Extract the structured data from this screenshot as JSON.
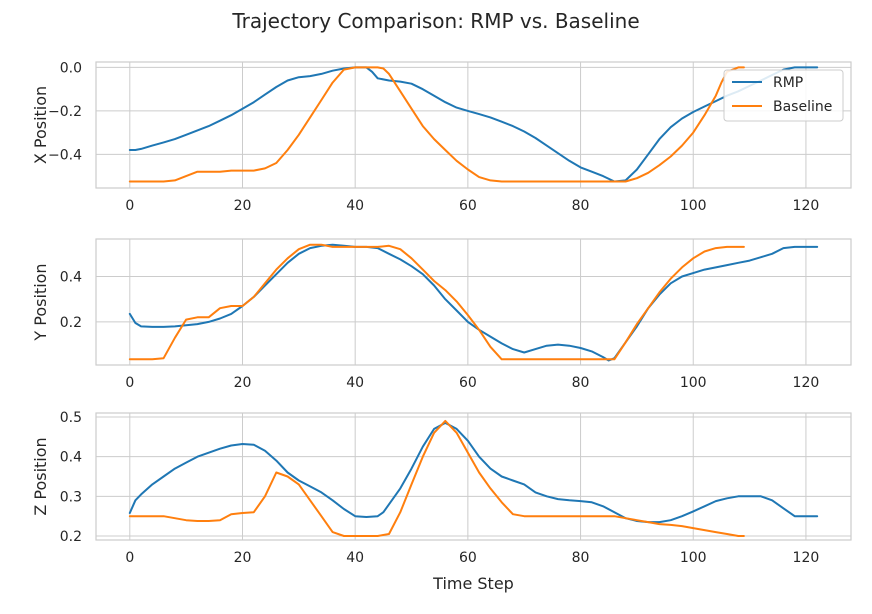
{
  "figure": {
    "title": "Trajectory Comparison: RMP vs. Baseline"
  },
  "legend": {
    "items": [
      {
        "label": "RMP",
        "color": "#1f77b4"
      },
      {
        "label": "Baseline",
        "color": "#ff7f0e"
      }
    ],
    "placement": "upper-right of top subplot"
  },
  "chart_data": [
    {
      "type": "line",
      "title": "",
      "xlabel": "",
      "ylabel": "X Position",
      "xlim": [
        -6,
        128
      ],
      "ylim": [
        -0.555,
        0.025
      ],
      "xticks": [
        0,
        20,
        40,
        60,
        80,
        100,
        120
      ],
      "yticks": [
        -0.4,
        -0.2,
        0.0
      ],
      "ytick_labels": [
        "−0.4",
        "−0.2",
        "0.0"
      ],
      "grid": true,
      "series": [
        {
          "name": "RMP",
          "color": "#1f77b4",
          "x": [
            0,
            1,
            2,
            4,
            6,
            8,
            10,
            12,
            14,
            16,
            18,
            20,
            22,
            24,
            26,
            28,
            30,
            32,
            34,
            36,
            38,
            40,
            42,
            43,
            44,
            46,
            48,
            50,
            52,
            54,
            56,
            58,
            60,
            62,
            64,
            66,
            68,
            70,
            72,
            74,
            76,
            78,
            80,
            82,
            84,
            86,
            88,
            90,
            92,
            94,
            96,
            98,
            100,
            102,
            104,
            106,
            108,
            110,
            112,
            114,
            116,
            118,
            120,
            122
          ],
          "y": [
            -0.38,
            -0.38,
            -0.375,
            -0.36,
            -0.345,
            -0.33,
            -0.31,
            -0.29,
            -0.27,
            -0.245,
            -0.22,
            -0.19,
            -0.16,
            -0.125,
            -0.09,
            -0.06,
            -0.045,
            -0.04,
            -0.03,
            -0.015,
            -0.005,
            0.0,
            0.0,
            -0.02,
            -0.05,
            -0.06,
            -0.065,
            -0.075,
            -0.1,
            -0.13,
            -0.16,
            -0.185,
            -0.2,
            -0.215,
            -0.23,
            -0.25,
            -0.27,
            -0.295,
            -0.325,
            -0.36,
            -0.395,
            -0.43,
            -0.46,
            -0.48,
            -0.5,
            -0.525,
            -0.52,
            -0.47,
            -0.4,
            -0.33,
            -0.275,
            -0.235,
            -0.205,
            -0.18,
            -0.155,
            -0.13,
            -0.11,
            -0.085,
            -0.06,
            -0.035,
            -0.01,
            0.0,
            0.0,
            0.0
          ]
        },
        {
          "name": "Baseline",
          "color": "#ff7f0e",
          "x": [
            0,
            2,
            4,
            6,
            8,
            10,
            12,
            14,
            16,
            18,
            20,
            22,
            24,
            26,
            28,
            30,
            32,
            34,
            36,
            38,
            40,
            42,
            44,
            45,
            46,
            48,
            50,
            52,
            54,
            56,
            58,
            60,
            62,
            64,
            66,
            68,
            70,
            72,
            74,
            76,
            78,
            80,
            82,
            84,
            86,
            88,
            90,
            92,
            94,
            96,
            98,
            100,
            102,
            104,
            105,
            106,
            108,
            109
          ],
          "y": [
            -0.525,
            -0.525,
            -0.525,
            -0.525,
            -0.52,
            -0.5,
            -0.48,
            -0.48,
            -0.48,
            -0.475,
            -0.475,
            -0.475,
            -0.465,
            -0.44,
            -0.38,
            -0.31,
            -0.23,
            -0.15,
            -0.07,
            -0.01,
            0.0,
            0.0,
            0.0,
            -0.005,
            -0.03,
            -0.11,
            -0.19,
            -0.27,
            -0.33,
            -0.38,
            -0.43,
            -0.47,
            -0.505,
            -0.52,
            -0.525,
            -0.525,
            -0.525,
            -0.525,
            -0.525,
            -0.525,
            -0.525,
            -0.525,
            -0.525,
            -0.525,
            -0.525,
            -0.525,
            -0.51,
            -0.485,
            -0.45,
            -0.41,
            -0.36,
            -0.3,
            -0.22,
            -0.13,
            -0.07,
            -0.02,
            0.0,
            0.0
          ]
        }
      ]
    },
    {
      "type": "line",
      "title": "",
      "xlabel": "",
      "ylabel": "Y Position",
      "xlim": [
        -6,
        128
      ],
      "ylim": [
        0.01,
        0.565
      ],
      "xticks": [
        0,
        20,
        40,
        60,
        80,
        100,
        120
      ],
      "yticks": [
        0.2,
        0.4
      ],
      "ytick_labels": [
        "0.2",
        "0.4"
      ],
      "grid": true,
      "series": [
        {
          "name": "RMP",
          "color": "#1f77b4",
          "x": [
            0,
            1,
            2,
            4,
            6,
            8,
            10,
            12,
            14,
            16,
            18,
            20,
            22,
            24,
            26,
            28,
            30,
            32,
            34,
            36,
            38,
            40,
            42,
            44,
            46,
            48,
            50,
            52,
            54,
            56,
            58,
            60,
            62,
            64,
            66,
            68,
            70,
            72,
            74,
            76,
            78,
            80,
            82,
            84,
            85,
            86,
            88,
            90,
            92,
            94,
            96,
            98,
            100,
            102,
            104,
            106,
            108,
            110,
            112,
            114,
            116,
            118,
            120,
            122
          ],
          "y": [
            0.235,
            0.195,
            0.18,
            0.178,
            0.178,
            0.18,
            0.185,
            0.19,
            0.2,
            0.215,
            0.235,
            0.27,
            0.31,
            0.36,
            0.41,
            0.46,
            0.5,
            0.525,
            0.535,
            0.54,
            0.535,
            0.53,
            0.53,
            0.525,
            0.5,
            0.475,
            0.445,
            0.41,
            0.36,
            0.3,
            0.25,
            0.2,
            0.165,
            0.135,
            0.105,
            0.08,
            0.065,
            0.08,
            0.095,
            0.1,
            0.095,
            0.085,
            0.07,
            0.045,
            0.03,
            0.04,
            0.11,
            0.18,
            0.26,
            0.32,
            0.37,
            0.4,
            0.415,
            0.43,
            0.44,
            0.45,
            0.46,
            0.47,
            0.485,
            0.5,
            0.525,
            0.53,
            0.53,
            0.53
          ]
        },
        {
          "name": "Baseline",
          "color": "#ff7f0e",
          "x": [
            0,
            2,
            4,
            6,
            8,
            10,
            12,
            14,
            16,
            18,
            20,
            22,
            24,
            26,
            28,
            30,
            32,
            34,
            36,
            38,
            40,
            42,
            44,
            46,
            48,
            50,
            52,
            54,
            56,
            58,
            60,
            62,
            64,
            66,
            68,
            70,
            72,
            74,
            76,
            78,
            80,
            82,
            84,
            86,
            88,
            90,
            92,
            94,
            96,
            98,
            100,
            102,
            104,
            106,
            108,
            109
          ],
          "y": [
            0.035,
            0.035,
            0.035,
            0.04,
            0.13,
            0.21,
            0.22,
            0.22,
            0.26,
            0.27,
            0.27,
            0.31,
            0.37,
            0.43,
            0.48,
            0.52,
            0.54,
            0.54,
            0.53,
            0.53,
            0.53,
            0.53,
            0.53,
            0.535,
            0.52,
            0.48,
            0.43,
            0.38,
            0.34,
            0.29,
            0.23,
            0.165,
            0.09,
            0.035,
            0.035,
            0.035,
            0.035,
            0.035,
            0.035,
            0.035,
            0.035,
            0.035,
            0.035,
            0.035,
            0.11,
            0.19,
            0.26,
            0.33,
            0.39,
            0.44,
            0.48,
            0.51,
            0.525,
            0.53,
            0.53,
            0.53
          ]
        }
      ]
    },
    {
      "type": "line",
      "title": "",
      "xlabel": "Time Step",
      "ylabel": "Z Position",
      "xlim": [
        -6,
        128
      ],
      "ylim": [
        0.19,
        0.51
      ],
      "xticks": [
        0,
        20,
        40,
        60,
        80,
        100,
        120
      ],
      "yticks": [
        0.2,
        0.3,
        0.4,
        0.5
      ],
      "ytick_labels": [
        "0.2",
        "0.3",
        "0.4",
        "0.5"
      ],
      "grid": true,
      "series": [
        {
          "name": "RMP",
          "color": "#1f77b4",
          "x": [
            0,
            1,
            2,
            4,
            6,
            8,
            10,
            12,
            14,
            16,
            18,
            20,
            22,
            24,
            26,
            28,
            30,
            32,
            34,
            36,
            38,
            40,
            42,
            44,
            45,
            46,
            48,
            50,
            52,
            54,
            56,
            58,
            60,
            62,
            64,
            66,
            68,
            70,
            72,
            74,
            76,
            78,
            80,
            82,
            84,
            86,
            88,
            90,
            92,
            94,
            96,
            98,
            100,
            102,
            104,
            106,
            108,
            110,
            112,
            114,
            116,
            118,
            120,
            122
          ],
          "y": [
            0.258,
            0.29,
            0.305,
            0.33,
            0.35,
            0.37,
            0.385,
            0.4,
            0.41,
            0.42,
            0.428,
            0.432,
            0.43,
            0.415,
            0.39,
            0.36,
            0.34,
            0.325,
            0.31,
            0.29,
            0.268,
            0.25,
            0.248,
            0.25,
            0.26,
            0.28,
            0.32,
            0.37,
            0.425,
            0.47,
            0.485,
            0.47,
            0.44,
            0.4,
            0.37,
            0.35,
            0.34,
            0.33,
            0.31,
            0.3,
            0.293,
            0.29,
            0.288,
            0.285,
            0.275,
            0.26,
            0.245,
            0.238,
            0.235,
            0.235,
            0.24,
            0.25,
            0.262,
            0.275,
            0.288,
            0.295,
            0.3,
            0.3,
            0.3,
            0.29,
            0.27,
            0.25,
            0.25,
            0.25
          ]
        },
        {
          "name": "Baseline",
          "color": "#ff7f0e",
          "x": [
            0,
            2,
            4,
            6,
            8,
            10,
            12,
            14,
            16,
            18,
            20,
            22,
            24,
            26,
            28,
            30,
            32,
            34,
            36,
            38,
            40,
            42,
            44,
            46,
            48,
            50,
            52,
            54,
            56,
            58,
            60,
            62,
            64,
            66,
            68,
            70,
            72,
            74,
            76,
            78,
            80,
            82,
            84,
            86,
            88,
            90,
            92,
            94,
            96,
            98,
            100,
            102,
            104,
            106,
            108,
            109
          ],
          "y": [
            0.25,
            0.25,
            0.25,
            0.25,
            0.245,
            0.24,
            0.238,
            0.238,
            0.24,
            0.255,
            0.258,
            0.26,
            0.3,
            0.36,
            0.35,
            0.33,
            0.29,
            0.25,
            0.21,
            0.2,
            0.2,
            0.2,
            0.2,
            0.205,
            0.26,
            0.33,
            0.4,
            0.46,
            0.49,
            0.46,
            0.41,
            0.36,
            0.32,
            0.285,
            0.255,
            0.25,
            0.25,
            0.25,
            0.25,
            0.25,
            0.25,
            0.25,
            0.25,
            0.25,
            0.245,
            0.24,
            0.235,
            0.23,
            0.228,
            0.225,
            0.22,
            0.215,
            0.21,
            0.205,
            0.2,
            0.2
          ]
        }
      ]
    }
  ]
}
